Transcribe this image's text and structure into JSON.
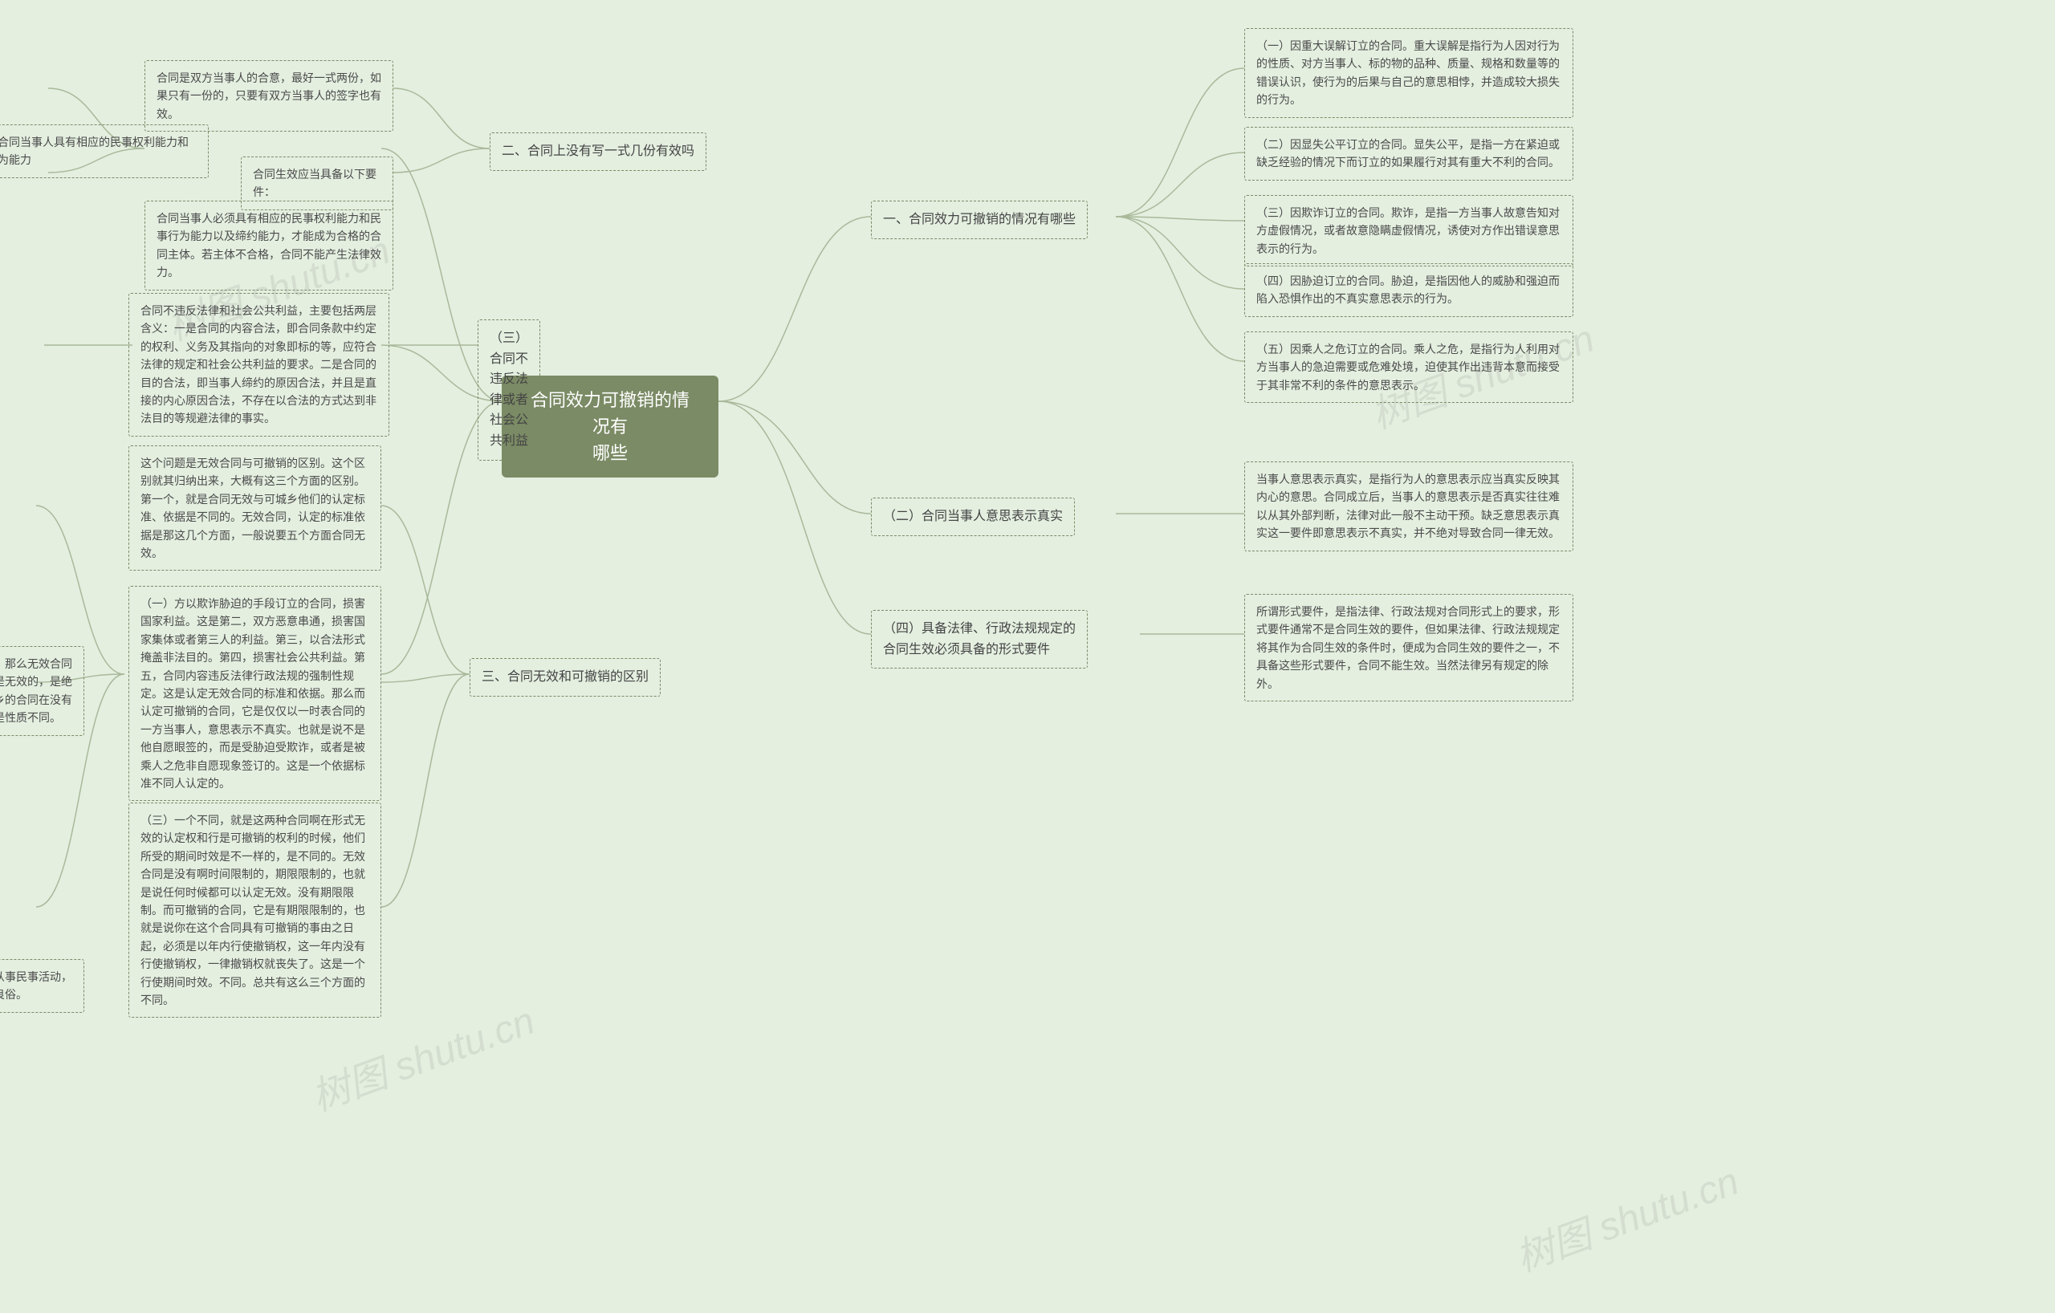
{
  "center": "合同效力可撤销的情况有\n哪些",
  "watermarks": [
    "树图 shutu.cn",
    "树图 shutu.cn",
    "树图 shutu.cn",
    "树图 shutu.cn"
  ],
  "colors": {
    "background": "#e4efe0",
    "center_bg": "#7b8b65",
    "center_text": "#ffffff",
    "node_border": "#7b8b65",
    "node_text": "#4a4a4a",
    "connector": "#a9b99a",
    "watermark": "rgba(120,120,120,0.15)"
  },
  "right": {
    "b1": {
      "label": "一、合同效力可撤销的情况有哪些",
      "children": [
        "（一）因重大误解订立的合同。重大误解是指行为人因对行为的性质、对方当事人、标的物的品种、质量、规格和数量等的错误认识，使行为的后果与自己的意思相悖，并造成较大损失的行为。",
        "（二）因显失公平订立的合同。显失公平，是指一方在紧迫或缺乏经验的情况下而订立的如果履行对其有重大不利的合同。",
        "（三）因欺诈订立的合同。欺诈，是指一方当事人故意告知对方虚假情况，或者故意隐瞒虚假情况，诱使对方作出错误意思表示的行为。",
        "（四）因胁迫订立的合同。胁迫，是指因他人的威胁和强迫而陷入恐惧作出的不真实意思表示的行为。",
        "（五）因乘人之危订立的合同。乘人之危，是指行为人利用对方当事人的急迫需要或危难处境，迫使其作出违背本意而接受于其非常不利的条件的意思表示。"
      ]
    },
    "b2": {
      "label": "（二）合同当事人意思表示真实",
      "children": [
        "当事人意思表示真实，是指行为人的意思表示应当真实反映其内心的意思。合同成立后，当事人的意思表示是否真实往往难以从其外部判断，法律对此一般不主动干预。缺乏意思表示真实这一要件即意思表示不真实，并不绝对导致合同一律无效。"
      ]
    },
    "b3": {
      "label": "（四）具备法律、行政法规规定的\n合同生效必须具备的形式要件",
      "children": [
        "所谓形式要件，是指法律、行政法规对合同形式上的要求，形式要件通常不是合同生效的要件，但如果法律、行政法规规定将其作为合同生效的条件时，便成为合同生效的要件之一，不具备这些形式要件，合同不能生效。当然法律另有规定的除外。"
      ]
    }
  },
  "left": {
    "b1": {
      "label": "二、合同上没有写一式几份有效吗",
      "children": [
        {
          "text": "合同是双方当事人的合意，最好一式两份，如果只有一份的，只要有双方当事人的签字也有效。"
        },
        {
          "text": "合同生效应当具备以下要件：",
          "sub": [
            "（一）合同当事人具有相应的民事权利能力和民事行为能力",
            "合同当事人必须具有相应的民事权利能力和民事行为能力以及缔约能力，才能成为合格的合同主体。若主体不合格，合同不能产生法律效力。"
          ]
        }
      ]
    },
    "b2": {
      "label": "（三）合同不违反法律或者社会公\n共利益",
      "children": [
        "合同不违反法律和社会公共利益，主要包括两层含义：一是合同的内容合法，即合同条款中约定的权利、义务及其指向的对象即标的等，应符合法律的规定和社会公共利益的要求。二是合同的目的合法，即当事人缔约的原因合法，并且是直接的内心原因合法，不存在以合法的方式达到非法目的等规避法律的事实。"
      ]
    },
    "b3": {
      "label": "三、合同无效和可撤销的区别",
      "children": [
        {
          "text": "这个问题是无效合同与可撤销的区别。这个区别就其归纳出来，大概有这三个方面的区别。第一个，就是合同无效与可城乡他们的认定标准、依据是不同的。无效合同，认定的标准依据是那这几个方面，一般说要五个方面合同无效。"
        },
        {
          "text": "（一）方以欺诈胁迫的手段订立的合同，损害国家利益。这是第二，双方恶意串通，损害国家集体或者第三人的利益。第三，以合法形式掩盖非法目的。第四，损害社会公共利益。第五，合同内容违反法律行政法规的强制性规定。这是认定无效合同的标准和依据。那么而认定可撤销的合同，它是仅仅以一时表合同的一方当事人，意思表示不真实。也就是说不是他自愿眼签的，而是受胁迫受欺诈，或者是被乘人之危非自愿现象签订的。这是一个依据标准不同人认定的。",
          "sub": "第二个方面，它们的性质不同。那么无效合同的性质它是从签订之日起它就是无效的，是绝对的无效，当然无效。而可城乡的合同在没有被撤销之前，它是有效的。这是性质不同。"
        },
        {
          "text": "（三）一个不同，就是这两种合同啊在形式无效的认定权和行是可撤销的权利的时候，他们所受的期间时效是不一样的，是不同的。无效合同是没有啊时间限制的，期限限制的，也就是说任何时候都可以认定无效。没有期限限制。而可撤销的合同，它是有期限限制的，也就是说你在这个合同具有可撤销的事由之日起，必须是以年内行使撤销权，这一年内没有行使撤销权，一律撤销权就丧失了。这是一个行使期间时效。不同。总共有这么三个方面的不同。",
          "sub": "《民法典》第八条，民事主体从事民事活动，不得违反法律，不得违背公序良俗。"
        }
      ]
    }
  }
}
